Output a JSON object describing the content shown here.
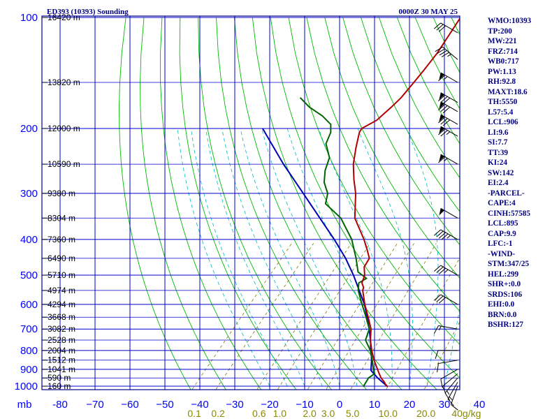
{
  "header": {
    "station_title": "ED393 (10393) Sounding",
    "valid_time": "0000Z 30 MAY 25"
  },
  "indices": [
    "WMO:10393",
    "TP:200",
    "MW:221",
    "FRZ:714",
    "WB0:717",
    "PW:1.13",
    "RH:92.8",
    "MAXT:18.6",
    "TH:5550",
    "L57:5.4",
    "LCL:906",
    "LI:9.6",
    "SI:7.7",
    "TT:39",
    "KI:24",
    "SW:142",
    "EI:2.4",
    "-PARCEL-",
    "CAPE:4",
    "CINH:57585",
    "LCL:895",
    "CAP:9.9",
    "LFC:-1",
    "-WIND-",
    "STM:347/25",
    "HEL:299",
    "SHR+:0.0",
    "SRDS:106",
    "EHI:0.0",
    "BRN:0.0",
    "BSHR:127"
  ],
  "chart_data": {
    "type": "skew-t log-p",
    "pressure_unit_label": "mb",
    "pressure_levels": [
      100,
      200,
      300,
      400,
      500,
      600,
      700,
      800,
      900,
      1000
    ],
    "pressure_tick_labels": [
      "100",
      "200",
      "300",
      "400",
      "500",
      "600",
      "700",
      "800",
      "900",
      "1000"
    ],
    "temperature_ticks": [
      -80,
      -70,
      -60,
      -50,
      -40,
      -30,
      -20,
      -10,
      0,
      10,
      20,
      30,
      40
    ],
    "temperature_tick_labels": [
      "-80",
      "−70",
      "−60",
      "−50",
      "−40",
      "−30",
      "−20",
      "−10",
      "0",
      "10",
      "20",
      "30",
      "40"
    ],
    "mixing_ratio_labels": [
      {
        "label": "0.1",
        "w": 0.1
      },
      {
        "label": "0.2",
        "w": 0.2
      },
      {
        "label": "0.6",
        "w": 0.6
      },
      {
        "label": "1.0",
        "w": 1.0
      },
      {
        "label": "2.0",
        "w": 2.0
      },
      {
        "label": "3.0",
        "w": 3.0
      },
      {
        "label": "5.0",
        "w": 5.0
      },
      {
        "label": "10.0",
        "w": 10.0
      },
      {
        "label": "20.0",
        "w": 20.0
      },
      {
        "label": "40g/kg",
        "w": 40.0
      }
    ],
    "height_labels": [
      {
        "p": 100,
        "label": "16420 m"
      },
      {
        "p": 150,
        "label": "13820 m"
      },
      {
        "p": 200,
        "label": "12000 m"
      },
      {
        "p": 250,
        "label": "10590 m"
      },
      {
        "p": 300,
        "label": "9380 m"
      },
      {
        "p": 350,
        "label": "8304 m"
      },
      {
        "p": 400,
        "label": "7360 m"
      },
      {
        "p": 450,
        "label": "6490 m"
      },
      {
        "p": 500,
        "label": "5710 m"
      },
      {
        "p": 550,
        "label": "4974 m"
      },
      {
        "p": 600,
        "label": "4294 m"
      },
      {
        "p": 650,
        "label": "3668 m"
      },
      {
        "p": 700,
        "label": "3082 m"
      },
      {
        "p": 750,
        "label": "2528 m"
      },
      {
        "p": 800,
        "label": "2004 m"
      },
      {
        "p": 850,
        "label": "1512 m"
      },
      {
        "p": 900,
        "label": "1041 m"
      },
      {
        "p": 950,
        "label": "590 m"
      },
      {
        "p": 1000,
        "label": "160 m"
      }
    ],
    "temperature": [
      [
        1003,
        13.9
      ],
      [
        990,
        12.8
      ],
      [
        975,
        11.8
      ],
      [
        950,
        9.8
      ],
      [
        925,
        8.2
      ],
      [
        900,
        6.6
      ],
      [
        850,
        3.3
      ],
      [
        800,
        0.2
      ],
      [
        750,
        -2.8
      ],
      [
        700,
        -5.4
      ],
      [
        650,
        -9.2
      ],
      [
        600,
        -13.4
      ],
      [
        550,
        -17.5
      ],
      [
        540,
        -18.0
      ],
      [
        525,
        -19.6
      ],
      [
        500,
        -20.8
      ],
      [
        475,
        -23.0
      ],
      [
        450,
        -23.7
      ],
      [
        425,
        -26.7
      ],
      [
        400,
        -30.0
      ],
      [
        350,
        -38.0
      ],
      [
        300,
        -44.0
      ],
      [
        275,
        -48.0
      ],
      [
        250,
        -52.0
      ],
      [
        225,
        -55.5
      ],
      [
        205,
        -58.3
      ],
      [
        200,
        -58.6
      ],
      [
        190,
        -56.4
      ],
      [
        175,
        -55.5
      ],
      [
        165,
        -55.1
      ],
      [
        150,
        -55.3
      ],
      [
        140,
        -55.5
      ],
      [
        125,
        -56.0
      ],
      [
        100,
        -58.3
      ]
    ],
    "dewpoint": [
      [
        1003,
        6.9
      ],
      [
        950,
        6.2
      ],
      [
        925,
        6.9
      ],
      [
        900,
        5.4
      ],
      [
        850,
        2.8
      ],
      [
        800,
        -0.2
      ],
      [
        750,
        -4.2
      ],
      [
        700,
        -5.9
      ],
      [
        650,
        -9.8
      ],
      [
        600,
        -14.2
      ],
      [
        550,
        -18.8
      ],
      [
        525,
        -20.5
      ],
      [
        510,
        -19.5
      ],
      [
        490,
        -23.5
      ],
      [
        450,
        -27.5
      ],
      [
        400,
        -33.5
      ],
      [
        350,
        -42.0
      ],
      [
        320,
        -50.0
      ],
      [
        300,
        -52.0
      ],
      [
        280,
        -55.8
      ],
      [
        260,
        -58.5
      ],
      [
        240,
        -60.5
      ],
      [
        220,
        -65.0
      ],
      [
        205,
        -66.5
      ],
      [
        195,
        -68.5
      ],
      [
        185,
        -73.0
      ],
      [
        175,
        -79.0
      ],
      [
        165,
        -84.0
      ]
    ],
    "parcel_path": [
      [
        1003,
        13.9
      ],
      [
        950,
        8.8
      ],
      [
        906,
        5.0
      ],
      [
        850,
        2.6
      ],
      [
        800,
        0.0
      ],
      [
        750,
        -2.8
      ],
      [
        700,
        -5.9
      ],
      [
        650,
        -9.5
      ],
      [
        600,
        -13.5
      ],
      [
        550,
        -18.5
      ],
      [
        500,
        -24.0
      ],
      [
        450,
        -30.5
      ],
      [
        400,
        -38.5
      ],
      [
        350,
        -48.0
      ],
      [
        300,
        -59.0
      ],
      [
        250,
        -72.0
      ],
      [
        200,
        -87.0
      ]
    ],
    "wind_barbs": [
      {
        "p": 1000,
        "dir": 200,
        "spd": 10
      },
      {
        "p": 975,
        "dir": 210,
        "spd": 15
      },
      {
        "p": 950,
        "dir": 220,
        "spd": 15
      },
      {
        "p": 925,
        "dir": 230,
        "spd": 10
      },
      {
        "p": 900,
        "dir": 240,
        "spd": 10
      },
      {
        "p": 850,
        "dir": 260,
        "spd": 10
      },
      {
        "p": 800,
        "dir": 270,
        "spd": 10
      },
      {
        "p": 700,
        "dir": 280,
        "spd": 15
      },
      {
        "p": 600,
        "dir": 300,
        "spd": 30
      },
      {
        "p": 500,
        "dir": 300,
        "spd": 35
      },
      {
        "p": 400,
        "dir": 300,
        "spd": 45
      },
      {
        "p": 350,
        "dir": 300,
        "spd": 50
      },
      {
        "p": 250,
        "dir": 300,
        "spd": 65
      },
      {
        "p": 210,
        "dir": 300,
        "spd": 75
      },
      {
        "p": 195,
        "dir": 300,
        "spd": 80
      },
      {
        "p": 180,
        "dir": 300,
        "spd": 80
      },
      {
        "p": 170,
        "dir": 300,
        "spd": 80
      },
      {
        "p": 150,
        "dir": 300,
        "spd": 65
      },
      {
        "p": 130,
        "dir": 310,
        "spd": 45
      },
      {
        "p": 110,
        "dir": 300,
        "spd": 30
      }
    ],
    "colors": {
      "frame": "#00008b",
      "isobar": "#0000cc",
      "isotherm": "#0000cc",
      "dry_adiabat": "#00bb00",
      "moist_adiabat": "#00bbbb",
      "mixing_ratio": "#7a7a00",
      "temperature": "#b00000",
      "dewpoint": "#006400",
      "parcel": "#0000b0",
      "wind_barb": "#000000"
    }
  }
}
